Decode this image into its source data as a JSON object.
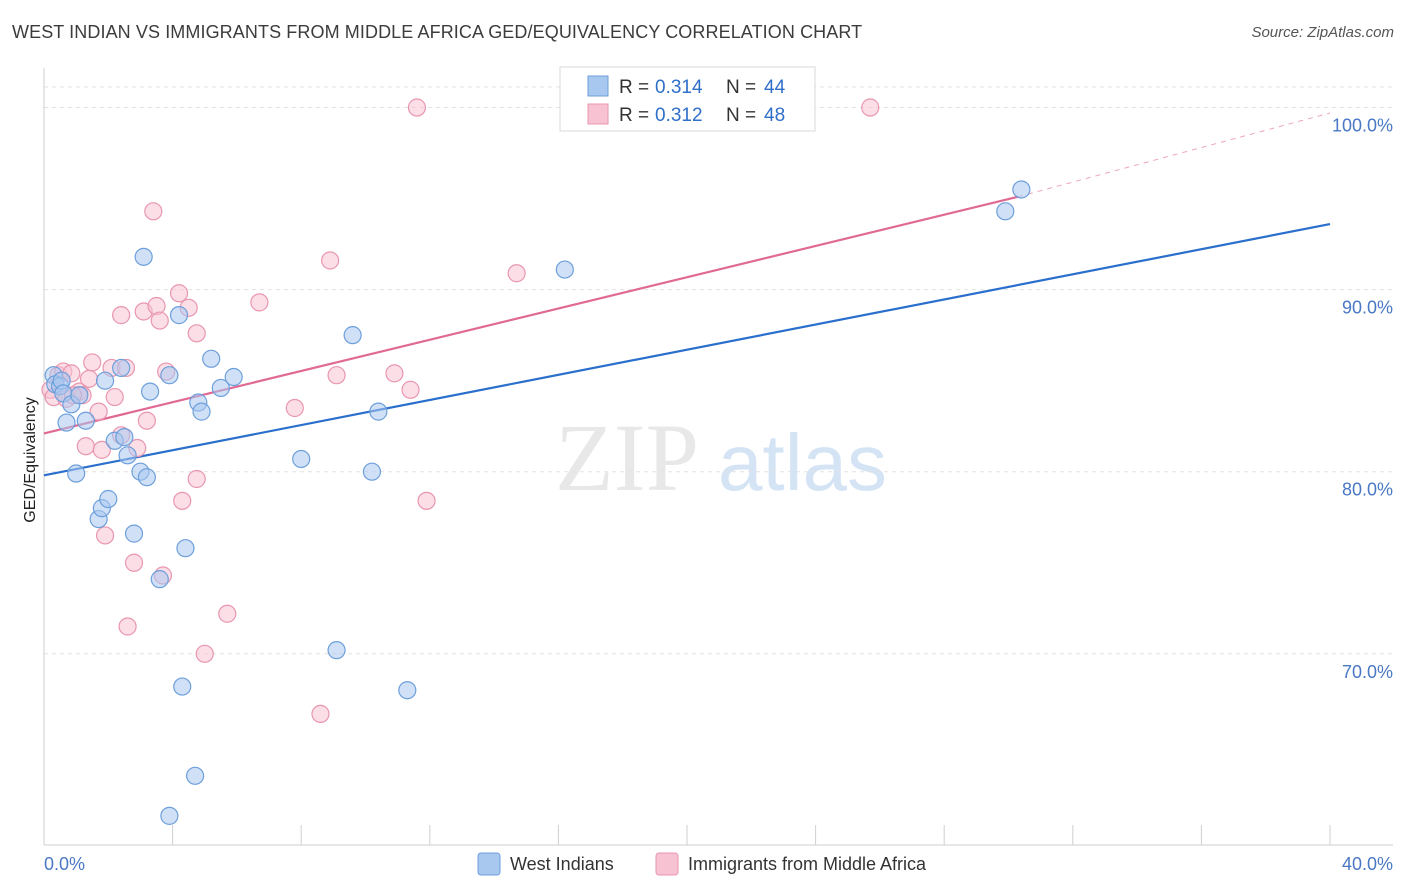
{
  "header": {
    "title": "WEST INDIAN VS IMMIGRANTS FROM MIDDLE AFRICA GED/EQUIVALENCY CORRELATION CHART",
    "source": "Source: ZipAtlas.com"
  },
  "watermark": {
    "zip": "ZIP",
    "atlas": "atlas"
  },
  "colors": {
    "blue_fill": "#a9c8f0",
    "blue_stroke": "#6d9fdb",
    "blue_line": "#2a6fcc",
    "pink_fill": "#f7c3d2",
    "pink_stroke": "#e996b0",
    "pink_line": "#e06a94",
    "grid": "#e2e2e2",
    "tick_text": "#4a78c4"
  },
  "chart_data": {
    "type": "scatter",
    "title": "WEST INDIAN VS IMMIGRANTS FROM MIDDLE AFRICA GED/EQUIVALENCY CORRELATION CHART",
    "xlabel": "",
    "ylabel": "GED/Equivalency",
    "xlim": [
      0,
      40
    ],
    "ylim": [
      59.5,
      102.5
    ],
    "x_tick_labels": [
      "0.0%",
      "40.0%"
    ],
    "y_ticks": [
      70,
      80,
      90,
      100
    ],
    "y_tick_labels": [
      "70.0%",
      "80.0%",
      "90.0%",
      "100.0%"
    ],
    "legend": {
      "series": [
        {
          "r_label": "R =",
          "r_value": "0.314",
          "n_label": "N =",
          "n_value": "44"
        },
        {
          "r_label": "R =",
          "r_value": "0.312",
          "n_label": "N =",
          "n_value": "48"
        }
      ]
    },
    "series": [
      {
        "name": "West Indians",
        "color": "blue",
        "trend": {
          "x": [
            0,
            40
          ],
          "y": [
            79.8,
            93.6
          ]
        },
        "points": [
          [
            0.3,
            85.3
          ],
          [
            0.35,
            84.8
          ],
          [
            0.5,
            84.7
          ],
          [
            0.55,
            85.0
          ],
          [
            0.6,
            84.3
          ],
          [
            0.7,
            82.7
          ],
          [
            0.85,
            83.7
          ],
          [
            1.0,
            79.9
          ],
          [
            1.1,
            84.2
          ],
          [
            1.3,
            82.8
          ],
          [
            1.7,
            77.4
          ],
          [
            1.8,
            78.0
          ],
          [
            2.0,
            78.5
          ],
          [
            2.2,
            81.7
          ],
          [
            2.5,
            81.9
          ],
          [
            2.6,
            80.9
          ],
          [
            2.8,
            76.6
          ],
          [
            3.0,
            80.0
          ],
          [
            3.2,
            79.7
          ],
          [
            3.3,
            84.4
          ],
          [
            3.6,
            74.1
          ],
          [
            3.9,
            85.3
          ],
          [
            4.2,
            88.6
          ],
          [
            4.3,
            68.2
          ],
          [
            4.4,
            75.8
          ],
          [
            4.8,
            83.8
          ],
          [
            4.9,
            83.3
          ],
          [
            5.2,
            86.2
          ],
          [
            5.5,
            84.6
          ],
          [
            5.9,
            85.2
          ],
          [
            8.0,
            80.7
          ],
          [
            9.1,
            70.2
          ],
          [
            9.6,
            87.5
          ],
          [
            10.2,
            80.0
          ],
          [
            10.4,
            83.3
          ],
          [
            11.3,
            68.0
          ],
          [
            16.2,
            91.1
          ],
          [
            3.1,
            91.8
          ],
          [
            4.7,
            63.3
          ],
          [
            3.9,
            61.1
          ],
          [
            2.4,
            85.7
          ],
          [
            1.9,
            85.0
          ],
          [
            29.9,
            94.3
          ],
          [
            30.4,
            95.5
          ]
        ]
      },
      {
        "name": "Immigrants from Middle Africa",
        "color": "pink",
        "trend": {
          "x": [
            0,
            30.3
          ],
          "y": [
            82.1,
            95.1
          ]
        },
        "trend_dashed": {
          "x": [
            30.3,
            40
          ],
          "y": [
            95.1,
            99.7
          ]
        },
        "points": [
          [
            0.2,
            84.5
          ],
          [
            0.3,
            84.1
          ],
          [
            0.45,
            85.3
          ],
          [
            0.6,
            85.5
          ],
          [
            0.7,
            84.0
          ],
          [
            0.85,
            85.4
          ],
          [
            1.1,
            84.4
          ],
          [
            1.2,
            84.2
          ],
          [
            1.3,
            81.4
          ],
          [
            1.4,
            85.1
          ],
          [
            1.5,
            86.0
          ],
          [
            1.7,
            83.3
          ],
          [
            1.8,
            81.2
          ],
          [
            1.9,
            76.5
          ],
          [
            2.1,
            85.7
          ],
          [
            2.2,
            84.1
          ],
          [
            2.4,
            82.0
          ],
          [
            2.4,
            88.6
          ],
          [
            2.55,
            85.7
          ],
          [
            2.6,
            71.5
          ],
          [
            2.8,
            75.0
          ],
          [
            2.9,
            81.3
          ],
          [
            3.1,
            88.8
          ],
          [
            3.2,
            82.8
          ],
          [
            3.4,
            94.3
          ],
          [
            3.5,
            89.1
          ],
          [
            3.6,
            88.3
          ],
          [
            3.7,
            74.3
          ],
          [
            3.8,
            85.5
          ],
          [
            4.2,
            89.8
          ],
          [
            4.3,
            78.4
          ],
          [
            4.5,
            89.0
          ],
          [
            4.75,
            87.6
          ],
          [
            4.75,
            79.6
          ],
          [
            5.0,
            70.0
          ],
          [
            5.7,
            72.2
          ],
          [
            6.7,
            89.3
          ],
          [
            7.8,
            83.5
          ],
          [
            8.6,
            66.7
          ],
          [
            8.9,
            91.6
          ],
          [
            9.1,
            85.3
          ],
          [
            10.9,
            85.4
          ],
          [
            11.4,
            84.5
          ],
          [
            11.6,
            100.0
          ],
          [
            11.9,
            78.4
          ],
          [
            14.7,
            90.9
          ],
          [
            25.7,
            100.0
          ],
          [
            0.9,
            84.2
          ]
        ]
      }
    ]
  }
}
